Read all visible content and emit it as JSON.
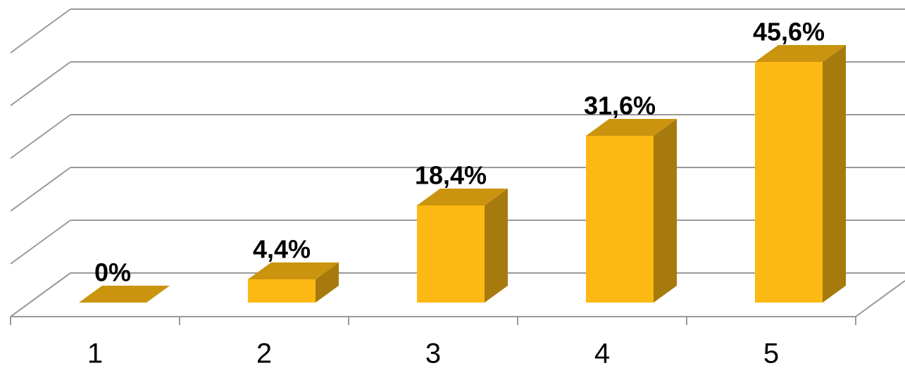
{
  "chart_data": {
    "type": "bar3d",
    "categories": [
      "1",
      "2",
      "3",
      "4",
      "5"
    ],
    "values": [
      0,
      4.4,
      18.4,
      31.6,
      45.6
    ],
    "value_labels": [
      "0%",
      "4,4%",
      "18,4%",
      "31,6%",
      "45,6%"
    ],
    "color": "#fdb913",
    "ylim": [
      0,
      50
    ],
    "yticks": [
      0,
      10,
      20,
      30,
      40,
      50
    ],
    "grid": true
  }
}
